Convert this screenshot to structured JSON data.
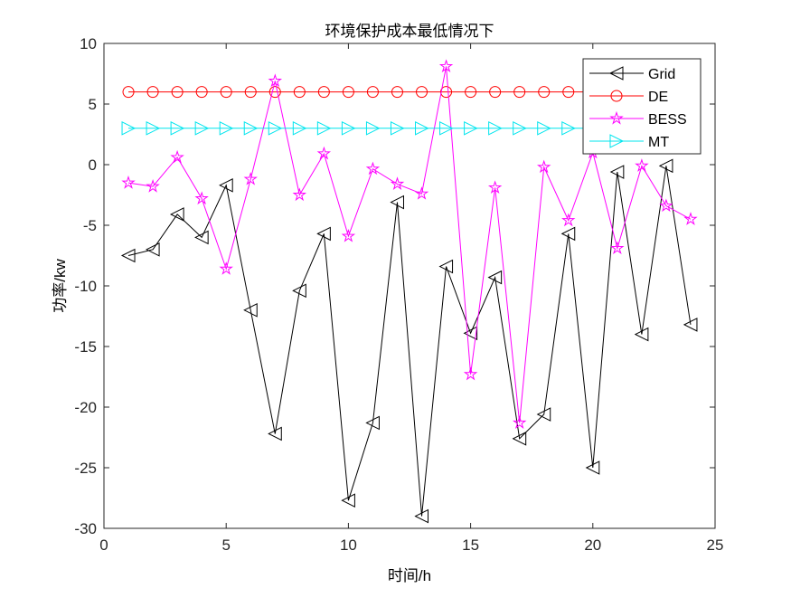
{
  "chart_data": {
    "type": "line",
    "title": "环境保护成本最低情况下",
    "xlabel": "时间/h",
    "ylabel": "功率/kw",
    "xlim": [
      0,
      25
    ],
    "ylim": [
      -30,
      10
    ],
    "xticks": [
      0,
      5,
      10,
      15,
      20,
      25
    ],
    "yticks": [
      -30,
      -25,
      -20,
      -15,
      -10,
      -5,
      0,
      5,
      10
    ],
    "x": [
      1,
      2,
      3,
      4,
      5,
      6,
      7,
      8,
      9,
      10,
      11,
      12,
      13,
      14,
      15,
      16,
      17,
      18,
      19,
      20,
      21,
      22,
      23,
      24
    ],
    "legend_position": "top-right",
    "series": [
      {
        "name": "Grid",
        "color": "#000000",
        "marker": "triangle-left",
        "values": [
          -7.5,
          -7.0,
          -4.1,
          -6.0,
          -1.7,
          -12.0,
          -22.2,
          -10.4,
          -5.7,
          -27.7,
          -21.3,
          -3.1,
          -29.0,
          -8.4,
          -13.9,
          -9.3,
          -22.6,
          -20.6,
          -5.7,
          -25.0,
          -0.6,
          -14.0,
          -0.1,
          -13.2
        ]
      },
      {
        "name": "DE",
        "color": "#ff0000",
        "marker": "circle",
        "values": [
          6,
          6,
          6,
          6,
          6,
          6,
          6,
          6,
          6,
          6,
          6,
          6,
          6,
          6,
          6,
          6,
          6,
          6,
          6,
          6,
          6,
          6,
          6,
          6
        ]
      },
      {
        "name": "BESS",
        "color": "#ff00ff",
        "marker": "star",
        "values": [
          -1.5,
          -1.8,
          0.6,
          -2.8,
          -8.6,
          -1.2,
          6.9,
          -2.5,
          0.9,
          -5.9,
          -0.35,
          -1.6,
          -2.4,
          8.1,
          -17.3,
          -1.9,
          -21.3,
          -0.2,
          -4.6,
          1.0,
          -6.9,
          -0.1,
          -3.4,
          -4.5
        ]
      },
      {
        "name": "MT",
        "color": "#00e5ee",
        "marker": "triangle-right",
        "values": [
          3,
          3,
          3,
          3,
          3,
          3,
          3,
          3,
          3,
          3,
          3,
          3,
          3,
          3,
          3,
          3,
          3,
          3,
          3,
          3,
          3,
          3,
          3,
          3
        ]
      }
    ]
  }
}
